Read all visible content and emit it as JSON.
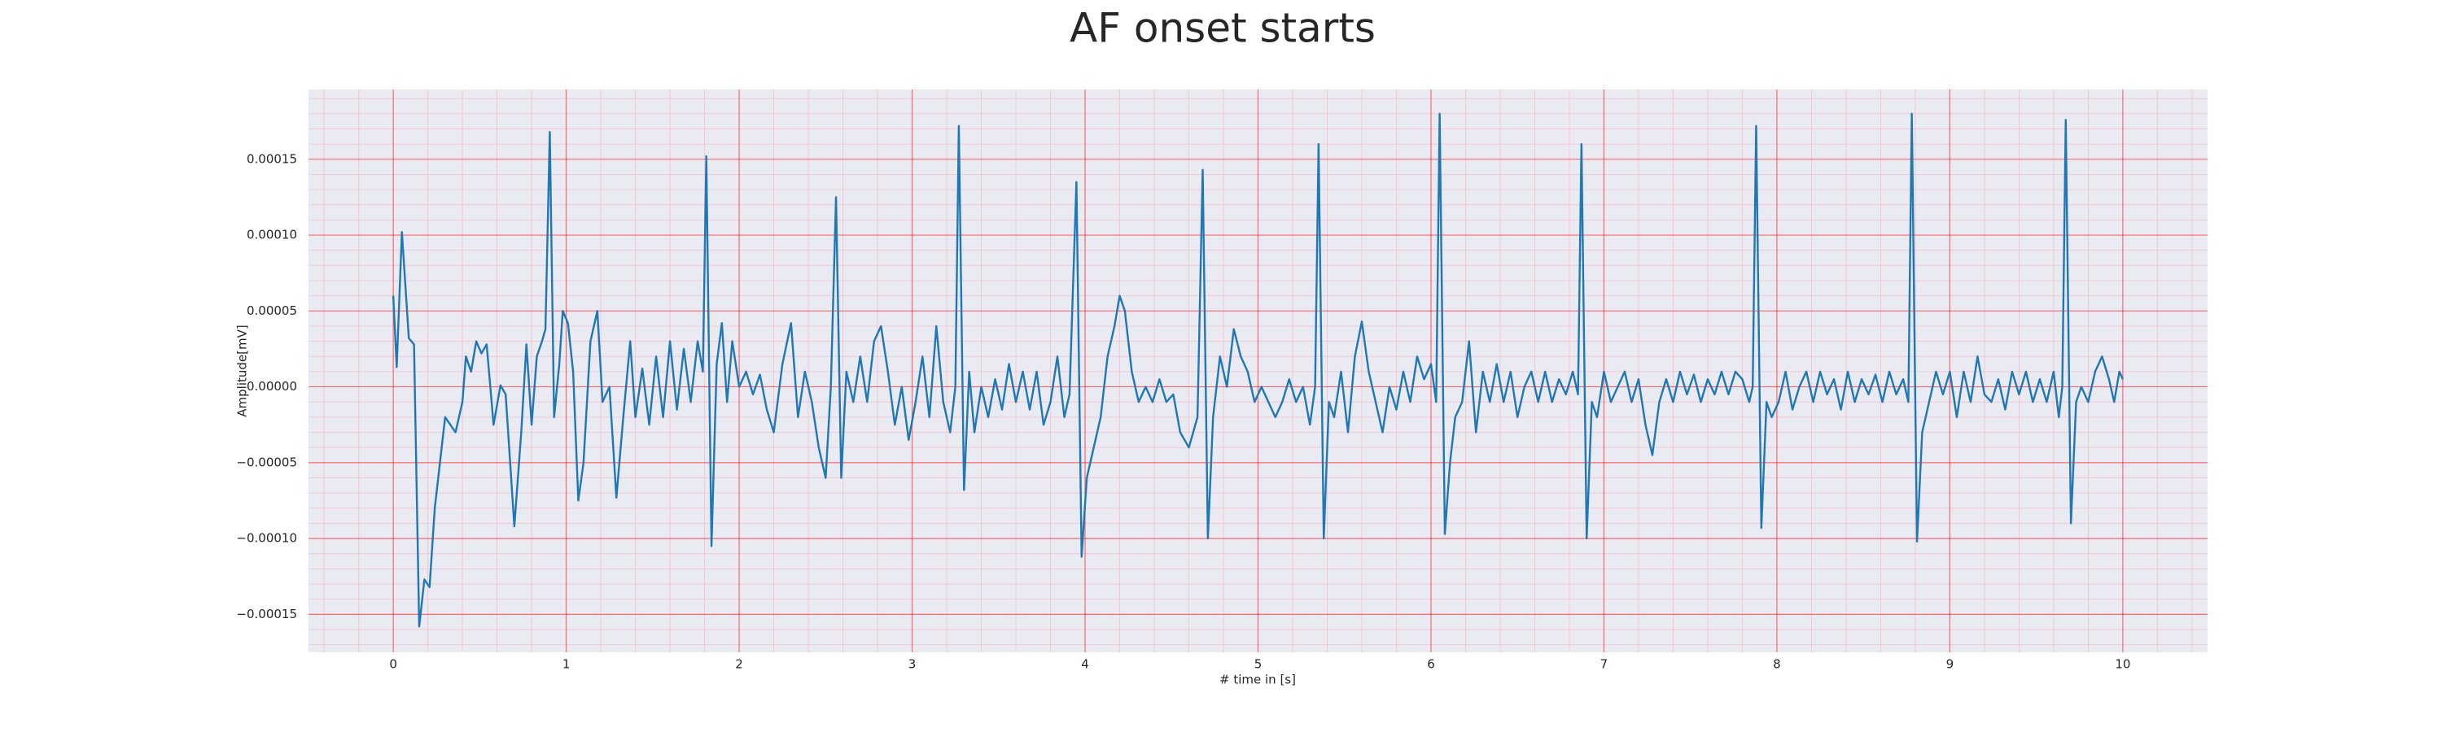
{
  "chart_data": {
    "type": "line",
    "title": "AF onset starts",
    "x_label": "# time in [s]",
    "y_label": "Amplitude[mV]",
    "xlim": [
      -0.49,
      10.49
    ],
    "ylim": [
      -0.000175,
      0.000196
    ],
    "xticks": [
      0,
      1,
      2,
      3,
      4,
      5,
      6,
      7,
      8,
      9,
      10
    ],
    "yticks": [
      {
        "value": -0.00015,
        "label": "−0.00015"
      },
      {
        "value": -0.0001,
        "label": "−0.00010"
      },
      {
        "value": -5e-05,
        "label": "−0.00005"
      },
      {
        "value": 0,
        "label": "0.00000"
      },
      {
        "value": 5e-05,
        "label": "0.00005"
      },
      {
        "value": 0.0001,
        "label": "0.00010"
      },
      {
        "value": 0.00015,
        "label": "0.00015"
      }
    ],
    "grid": true,
    "minor_grid": true,
    "x": [
      0,
      0.02,
      0.05,
      0.09,
      0.12,
      0.15,
      0.18,
      0.21,
      0.24,
      0.28,
      0.3,
      0.33,
      0.36,
      0.4,
      0.42,
      0.45,
      0.48,
      0.51,
      0.54,
      0.58,
      0.62,
      0.65,
      0.7,
      0.74,
      0.77,
      0.8,
      0.83,
      0.86,
      0.88,
      0.905,
      0.93,
      0.96,
      0.98,
      1.01,
      1.04,
      1.07,
      1.1,
      1.14,
      1.18,
      1.21,
      1.25,
      1.29,
      1.33,
      1.37,
      1.4,
      1.44,
      1.48,
      1.52,
      1.56,
      1.6,
      1.64,
      1.68,
      1.72,
      1.76,
      1.79,
      1.81,
      1.84,
      1.87,
      1.9,
      1.93,
      1.96,
      2.0,
      2.04,
      2.08,
      2.12,
      2.16,
      2.2,
      2.25,
      2.3,
      2.34,
      2.38,
      2.42,
      2.46,
      2.5,
      2.53,
      2.56,
      2.59,
      2.62,
      2.66,
      2.7,
      2.74,
      2.78,
      2.82,
      2.86,
      2.9,
      2.94,
      2.98,
      3.02,
      3.06,
      3.1,
      3.14,
      3.18,
      3.22,
      3.25,
      3.27,
      3.3,
      3.33,
      3.36,
      3.4,
      3.44,
      3.48,
      3.52,
      3.56,
      3.6,
      3.64,
      3.68,
      3.72,
      3.76,
      3.8,
      3.84,
      3.88,
      3.91,
      3.95,
      3.98,
      4.01,
      4.05,
      4.09,
      4.13,
      4.17,
      4.2,
      4.23,
      4.27,
      4.31,
      4.35,
      4.39,
      4.43,
      4.47,
      4.51,
      4.55,
      4.6,
      4.65,
      4.68,
      4.71,
      4.74,
      4.78,
      4.82,
      4.86,
      4.9,
      4.94,
      4.98,
      5.02,
      5.06,
      5.1,
      5.14,
      5.18,
      5.22,
      5.26,
      5.3,
      5.33,
      5.35,
      5.38,
      5.41,
      5.44,
      5.48,
      5.52,
      5.56,
      5.6,
      5.64,
      5.68,
      5.72,
      5.76,
      5.8,
      5.84,
      5.88,
      5.92,
      5.96,
      6.0,
      6.03,
      6.05,
      6.08,
      6.11,
      6.14,
      6.18,
      6.22,
      6.26,
      6.3,
      6.34,
      6.38,
      6.42,
      6.46,
      6.5,
      6.54,
      6.58,
      6.62,
      6.66,
      6.7,
      6.74,
      6.78,
      6.82,
      6.85,
      6.87,
      6.9,
      6.93,
      6.96,
      7.0,
      7.04,
      7.08,
      7.12,
      7.16,
      7.2,
      7.24,
      7.28,
      7.32,
      7.36,
      7.4,
      7.44,
      7.48,
      7.52,
      7.56,
      7.6,
      7.64,
      7.68,
      7.72,
      7.76,
      7.8,
      7.84,
      7.86,
      7.88,
      7.91,
      7.94,
      7.97,
      8.01,
      8.05,
      8.09,
      8.13,
      8.17,
      8.21,
      8.25,
      8.29,
      8.33,
      8.37,
      8.41,
      8.45,
      8.49,
      8.53,
      8.57,
      8.61,
      8.65,
      8.69,
      8.73,
      8.76,
      8.78,
      8.81,
      8.84,
      8.88,
      8.92,
      8.96,
      9.0,
      9.04,
      9.08,
      9.12,
      9.16,
      9.2,
      9.24,
      9.28,
      9.32,
      9.36,
      9.4,
      9.44,
      9.48,
      9.52,
      9.56,
      9.6,
      9.63,
      9.65,
      9.67,
      9.7,
      9.73,
      9.76,
      9.8,
      9.84,
      9.88,
      9.92,
      9.95,
      9.98,
      10
    ],
    "series": [
      {
        "color": "#1f77b4",
        "values": [
          6e-05,
          1.3e-05,
          0.000102,
          3.2e-05,
          2.8e-05,
          -0.000158,
          -0.000127,
          -0.000132,
          -8e-05,
          -4e-05,
          -2e-05,
          -2.5e-05,
          -3e-05,
          -1e-05,
          2e-05,
          1e-05,
          3e-05,
          2.2e-05,
          2.8e-05,
          -2.5e-05,
          1e-06,
          -5e-06,
          -9.2e-05,
          -3e-05,
          2.8e-05,
          -2.5e-05,
          2e-05,
          3e-05,
          3.8e-05,
          0.000168,
          -2e-05,
          1.5e-05,
          5e-05,
          4.2e-05,
          1e-05,
          -7.5e-05,
          -5e-05,
          3e-05,
          5e-05,
          -1e-05,
          0,
          -7.3e-05,
          -2e-05,
          3e-05,
          -2e-05,
          1.2e-05,
          -2.5e-05,
          2e-05,
          -2e-05,
          3e-05,
          -1.5e-05,
          2.5e-05,
          -1e-05,
          3e-05,
          1e-05,
          0.000152,
          -0.000105,
          1.5e-05,
          4.2e-05,
          -1e-05,
          3e-05,
          0,
          1e-05,
          -5e-06,
          8e-06,
          -1.5e-05,
          -3e-05,
          1.5e-05,
          4.2e-05,
          -2e-05,
          1e-05,
          -1e-05,
          -4e-05,
          -6e-05,
          0,
          0.000125,
          -6e-05,
          1e-05,
          -1e-05,
          2e-05,
          -1e-05,
          3e-05,
          4e-05,
          1e-05,
          -2.5e-05,
          0,
          -3.5e-05,
          -1e-05,
          2e-05,
          -2e-05,
          4e-05,
          -1e-05,
          -3e-05,
          0,
          0.000172,
          -6.8e-05,
          1e-05,
          -3e-05,
          0,
          -2e-05,
          5e-06,
          -1.5e-05,
          1.5e-05,
          -1e-05,
          1e-05,
          -1.5e-05,
          1e-05,
          -2.5e-05,
          -1e-05,
          2e-05,
          -2e-05,
          -5e-06,
          0.000135,
          -0.000112,
          -6e-05,
          -4e-05,
          -2e-05,
          2e-05,
          4e-05,
          6e-05,
          5e-05,
          1e-05,
          -1e-05,
          0,
          -1e-05,
          5e-06,
          -1e-05,
          -5e-06,
          -3e-05,
          -4e-05,
          -2e-05,
          0.000143,
          -0.0001,
          -2e-05,
          2e-05,
          0,
          3.8e-05,
          2e-05,
          1e-05,
          -1e-05,
          0,
          -1e-05,
          -2e-05,
          -1e-05,
          5e-06,
          -1e-05,
          0,
          -2.5e-05,
          0,
          0.00016,
          -0.0001,
          -1e-05,
          -2e-05,
          1e-05,
          -3e-05,
          2e-05,
          4.3e-05,
          1e-05,
          -1e-05,
          -3e-05,
          0,
          -1.5e-05,
          1e-05,
          -1e-05,
          2e-05,
          5e-06,
          1.5e-05,
          -1e-05,
          0.00018,
          -9.7e-05,
          -5e-05,
          -2e-05,
          -1e-05,
          3e-05,
          -3e-05,
          1e-05,
          -1e-05,
          1.5e-05,
          -1e-05,
          1e-05,
          -2e-05,
          0,
          1e-05,
          -1e-05,
          1e-05,
          -1e-05,
          5e-06,
          -5e-06,
          1e-05,
          -5e-06,
          0.00016,
          -0.0001,
          -1e-05,
          -2e-05,
          1e-05,
          -1e-05,
          0,
          1e-05,
          -1e-05,
          5e-06,
          -2.5e-05,
          -4.5e-05,
          -1e-05,
          5e-06,
          -1e-05,
          1e-05,
          -5e-06,
          8e-06,
          -1e-05,
          5e-06,
          -5e-06,
          1e-05,
          -5e-06,
          1e-05,
          5e-06,
          -1e-05,
          0,
          0.000172,
          -9.3e-05,
          -1e-05,
          -2e-05,
          -1e-05,
          1e-05,
          -1.5e-05,
          0,
          1e-05,
          -1e-05,
          1e-05,
          -5e-06,
          5e-06,
          -1.5e-05,
          1e-05,
          -1e-05,
          5e-06,
          -5e-06,
          8e-06,
          -1e-05,
          1e-05,
          -5e-06,
          5e-06,
          -1e-05,
          0.00018,
          -0.000102,
          -3e-05,
          -1e-05,
          1e-05,
          -5e-06,
          1e-05,
          -2e-05,
          1e-05,
          -1e-05,
          2e-05,
          -5e-06,
          -1e-05,
          5e-06,
          -1.5e-05,
          1e-05,
          -5e-06,
          1e-05,
          -1e-05,
          5e-06,
          -1e-05,
          1e-05,
          -2e-05,
          0,
          0.000176,
          -9e-05,
          -1e-05,
          0,
          -1e-05,
          1e-05,
          2e-05,
          5e-06,
          -1e-05,
          1e-05,
          5e-06
        ]
      }
    ]
  }
}
